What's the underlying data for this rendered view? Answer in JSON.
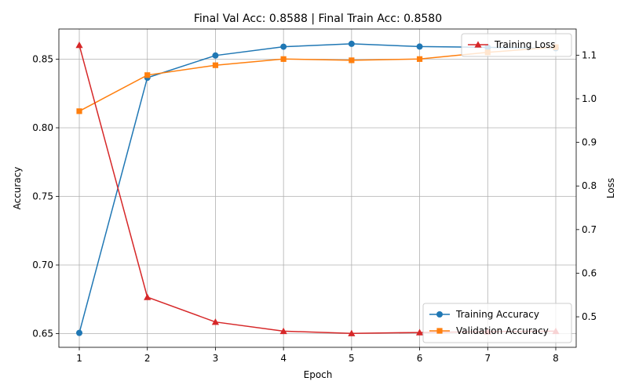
{
  "chart_data": {
    "type": "line",
    "title": "Final Val Acc: 0.8588 | Final Train Acc: 0.8580",
    "xlabel": "Epoch",
    "ylabel_left": "Accuracy",
    "ylabel_right": "Loss",
    "x": [
      1,
      2,
      3,
      4,
      5,
      6,
      7,
      8
    ],
    "x_ticks": [
      "1",
      "2",
      "3",
      "4",
      "5",
      "6",
      "7",
      "8"
    ],
    "ylim_left": [
      0.64,
      0.872
    ],
    "ylim_right": [
      0.43,
      1.16
    ],
    "yticks_left": [
      "0.65",
      "0.70",
      "0.75",
      "0.80",
      "0.85"
    ],
    "yticks_right": [
      "0.5",
      "0.6",
      "0.7",
      "0.8",
      "0.9",
      "1.0",
      "1.1"
    ],
    "grid": true,
    "series": [
      {
        "name": "Training Accuracy",
        "axis": "left",
        "color": "#1f77b4",
        "marker": "circle",
        "values": [
          0.6505,
          0.8365,
          0.8527,
          0.8591,
          0.8612,
          0.8592,
          0.8586,
          0.858
        ]
      },
      {
        "name": "Validation Accuracy",
        "axis": "left",
        "color": "#ff7f0e",
        "marker": "square",
        "values": [
          0.8121,
          0.8384,
          0.8456,
          0.8501,
          0.8492,
          0.8501,
          0.855,
          0.8588
        ]
      },
      {
        "name": "Training Loss",
        "axis": "right",
        "color": "#d62728",
        "marker": "triangle",
        "values": [
          1.123,
          0.545,
          0.488,
          0.467,
          0.462,
          0.464,
          0.466,
          0.467
        ]
      }
    ],
    "legend_accuracy_position": "lower-right",
    "legend_loss_position": "upper-right"
  }
}
